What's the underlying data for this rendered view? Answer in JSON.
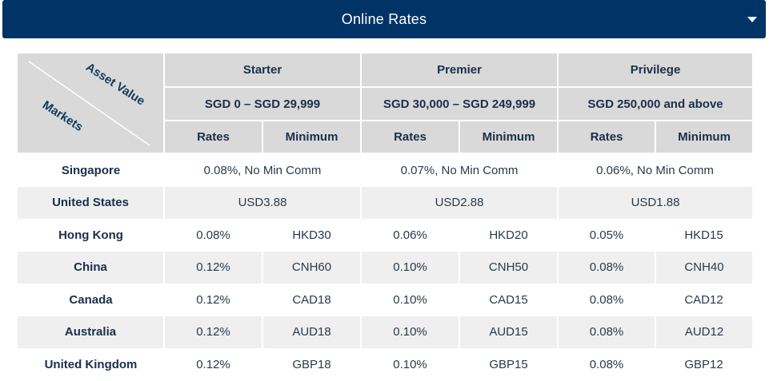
{
  "header": {
    "title": "Online Rates"
  },
  "table": {
    "corner": {
      "top_label": "Asset Value",
      "bottom_label": "Markets"
    },
    "tiers": [
      {
        "name": "Starter",
        "range": "SGD 0 – SGD 29,999"
      },
      {
        "name": "Premier",
        "range": "SGD 30,000 – SGD 249,999"
      },
      {
        "name": "Privilege",
        "range": "SGD 250,000 and above"
      }
    ],
    "subheaders": {
      "rates": "Rates",
      "minimum": "Minimum"
    },
    "rows": [
      {
        "market": "Singapore",
        "merged": [
          "0.08%, No Min Comm",
          "0.07%, No Min Comm",
          "0.06%, No Min Comm"
        ]
      },
      {
        "market": "United States",
        "merged": [
          "USD3.88",
          "USD2.88",
          "USD1.88"
        ]
      },
      {
        "market": "Hong Kong",
        "cells": [
          "0.08%",
          "HKD30",
          "0.06%",
          "HKD20",
          "0.05%",
          "HKD15"
        ]
      },
      {
        "market": "China",
        "cells": [
          "0.12%",
          "CNH60",
          "0.10%",
          "CNH50",
          "0.08%",
          "CNH40"
        ]
      },
      {
        "market": "Canada",
        "cells": [
          "0.12%",
          "CAD18",
          "0.10%",
          "CAD15",
          "0.08%",
          "CAD12"
        ]
      },
      {
        "market": "Australia",
        "cells": [
          "0.12%",
          "AUD18",
          "0.10%",
          "AUD15",
          "0.08%",
          "AUD12"
        ]
      },
      {
        "market": "United Kingdom",
        "cells": [
          "0.12%",
          "GBP18",
          "0.10%",
          "GBP15",
          "0.08%",
          "GBP12"
        ]
      }
    ]
  }
}
